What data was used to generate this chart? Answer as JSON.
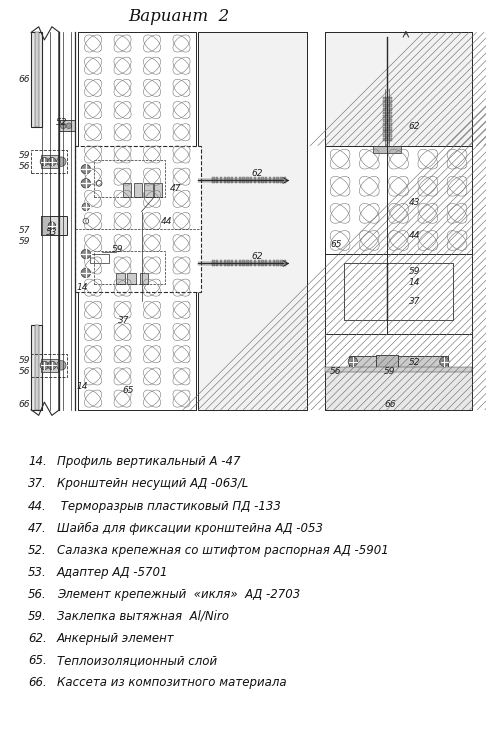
{
  "title": "Вариант  2",
  "legend_items": [
    [
      "14.",
      "Профиль вертикальный А -47"
    ],
    [
      "37.",
      "Кронштейн несущий АД -063/L"
    ],
    [
      "44.",
      " Терморазрыв пластиковый ПД -133"
    ],
    [
      "47.",
      "Шайба для фиксации кронштейна АД -053"
    ],
    [
      "52.",
      "Салазка крепежная со штифтом распорная АД -5901"
    ],
    [
      "53.",
      "Адаптер АД -5701"
    ],
    [
      "56.",
      "Элемент крепежный  «икля»  АД -2703"
    ],
    [
      "59.",
      "Заклепка вытяжная  Al/Niro"
    ],
    [
      "62.",
      "Анкерный элемент"
    ],
    [
      "65.",
      "Теплоизоляционный слой"
    ],
    [
      "66.",
      "Кассета из композитного материала"
    ]
  ],
  "line_color": "#2a2a2a",
  "bg_color": "#ffffff"
}
